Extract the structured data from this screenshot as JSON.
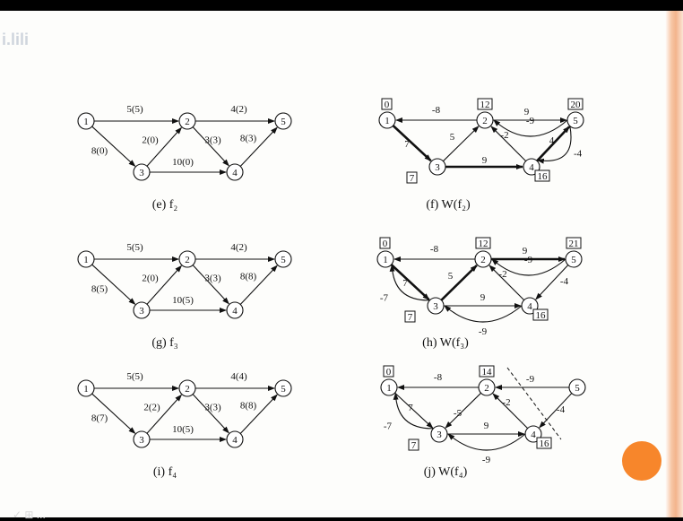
{
  "logo_text": "i.lili",
  "bottom_marks": "✓ ⊞ ...",
  "colors": {
    "slide_bg": "#fdfdfb",
    "accent_dot": "#f7862b",
    "border": "#f3b48c"
  },
  "panels": [
    {
      "id": "e",
      "caption": "(e) f₂",
      "nodes": [
        "1",
        "2",
        "3",
        "4",
        "5"
      ],
      "edges": [
        {
          "from": "1",
          "to": "2",
          "label": "5(5)"
        },
        {
          "from": "1",
          "to": "3",
          "label": "8(0)"
        },
        {
          "from": "3",
          "to": "2",
          "label": "2(0)"
        },
        {
          "from": "2",
          "to": "4",
          "label": "3(3)"
        },
        {
          "from": "3",
          "to": "4",
          "label": "10(0)"
        },
        {
          "from": "2",
          "to": "5",
          "label": "4(2)"
        },
        {
          "from": "4",
          "to": "5",
          "label": "8(3)"
        }
      ]
    },
    {
      "id": "g",
      "caption": "(g) f₃",
      "nodes": [
        "1",
        "2",
        "3",
        "4",
        "5"
      ],
      "edges": [
        {
          "from": "1",
          "to": "2",
          "label": "5(5)"
        },
        {
          "from": "1",
          "to": "3",
          "label": "8(5)"
        },
        {
          "from": "3",
          "to": "2",
          "label": "2(0)"
        },
        {
          "from": "2",
          "to": "4",
          "label": "3(3)"
        },
        {
          "from": "3",
          "to": "4",
          "label": "10(5)"
        },
        {
          "from": "2",
          "to": "5",
          "label": "4(2)"
        },
        {
          "from": "4",
          "to": "5",
          "label": "8(8)"
        }
      ]
    },
    {
      "id": "i",
      "caption": "(i) f₄",
      "nodes": [
        "1",
        "2",
        "3",
        "4",
        "5"
      ],
      "edges": [
        {
          "from": "1",
          "to": "2",
          "label": "5(5)"
        },
        {
          "from": "1",
          "to": "3",
          "label": "8(7)"
        },
        {
          "from": "3",
          "to": "2",
          "label": "2(2)"
        },
        {
          "from": "2",
          "to": "4",
          "label": "3(3)"
        },
        {
          "from": "3",
          "to": "4",
          "label": "10(5)"
        },
        {
          "from": "2",
          "to": "5",
          "label": "4(4)"
        },
        {
          "from": "4",
          "to": "5",
          "label": "8(8)"
        }
      ]
    },
    {
      "id": "f",
      "caption": "(f) W(f₂)",
      "nodes": [
        "1",
        "2",
        "3",
        "4",
        "5"
      ],
      "distances": {
        "1": "0",
        "2": "12",
        "3": "7",
        "4": "16",
        "5": "20"
      },
      "edges": [
        {
          "from": "2",
          "to": "1",
          "label": "-8"
        },
        {
          "from": "1",
          "to": "3",
          "label": "7",
          "bold": true
        },
        {
          "from": "3",
          "to": "2",
          "label": "5"
        },
        {
          "from": "4",
          "to": "2",
          "label": "-2"
        },
        {
          "from": "3",
          "to": "4",
          "label": "9",
          "bold": true
        },
        {
          "from": "2",
          "to": "5",
          "label": "9"
        },
        {
          "from": "5",
          "to": "2",
          "label": "-9"
        },
        {
          "from": "4",
          "to": "5",
          "label": "4",
          "bold": true
        },
        {
          "from": "5",
          "to": "4",
          "label": "-4"
        }
      ]
    },
    {
      "id": "h",
      "caption": "(h) W(f₃)",
      "nodes": [
        "1",
        "2",
        "3",
        "4",
        "5"
      ],
      "distances": {
        "1": "0",
        "2": "12",
        "3": "7",
        "4": "16",
        "5": "21"
      },
      "edges": [
        {
          "from": "2",
          "to": "1",
          "label": "-8"
        },
        {
          "from": "1",
          "to": "3",
          "label": "7",
          "bold": true
        },
        {
          "from": "3",
          "to": "1",
          "label": "-7"
        },
        {
          "from": "3",
          "to": "2",
          "label": "5",
          "bold": true
        },
        {
          "from": "4",
          "to": "2",
          "label": "-2"
        },
        {
          "from": "3",
          "to": "4",
          "label": "9"
        },
        {
          "from": "4",
          "to": "3",
          "label": "-9"
        },
        {
          "from": "2",
          "to": "5",
          "label": "9",
          "bold": true
        },
        {
          "from": "5",
          "to": "2",
          "label": "-9"
        },
        {
          "from": "5",
          "to": "4",
          "label": "-4"
        }
      ]
    },
    {
      "id": "j",
      "caption": "(j) W(f₄)",
      "nodes": [
        "1",
        "2",
        "3",
        "4",
        "5"
      ],
      "distances": {
        "1": "0",
        "2": "14",
        "3": "7",
        "4": "16"
      },
      "edges": [
        {
          "from": "2",
          "to": "1",
          "label": "-8"
        },
        {
          "from": "1",
          "to": "3",
          "label": "7"
        },
        {
          "from": "3",
          "to": "1",
          "label": "-7"
        },
        {
          "from": "2",
          "to": "3",
          "label": "-5"
        },
        {
          "from": "4",
          "to": "2",
          "label": "-2"
        },
        {
          "from": "3",
          "to": "4",
          "label": "9"
        },
        {
          "from": "4",
          "to": "3",
          "label": "-9"
        },
        {
          "from": "5",
          "to": "2",
          "label": "-9"
        },
        {
          "from": "5",
          "to": "4",
          "label": "-4"
        }
      ]
    }
  ]
}
